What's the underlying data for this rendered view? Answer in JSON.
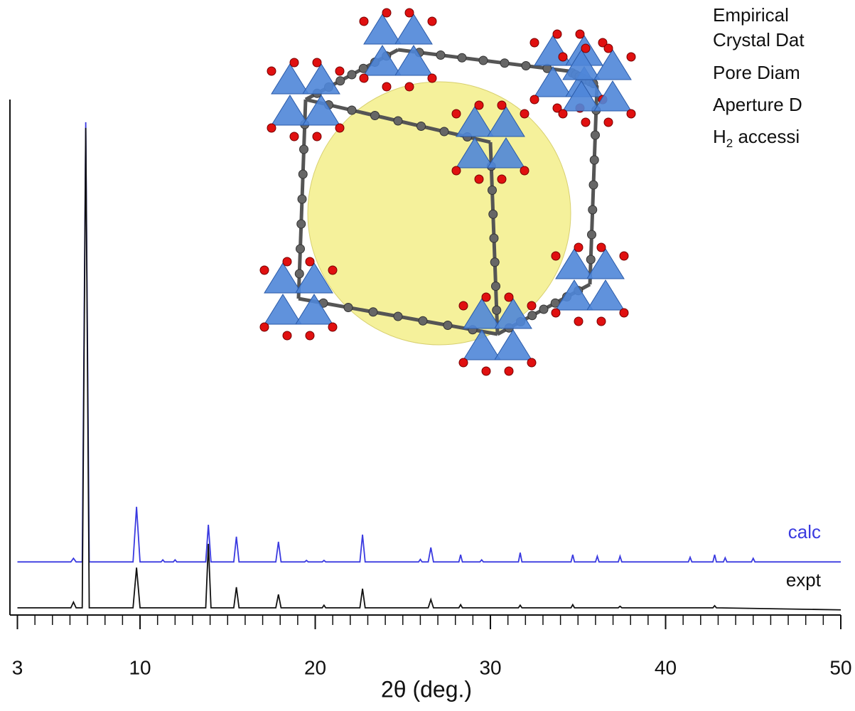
{
  "chart_data": {
    "type": "line",
    "xlabel": "2θ (deg.)",
    "xlim": [
      3,
      50
    ],
    "xticks": [
      3,
      10,
      20,
      30,
      40,
      50
    ],
    "xminorticks": [
      4,
      5,
      6,
      7,
      8,
      9,
      11,
      12,
      13,
      14,
      15,
      16,
      17,
      18,
      19,
      21,
      22,
      23,
      24,
      25,
      26,
      27,
      28,
      29,
      31,
      32,
      33,
      34,
      35,
      36,
      37,
      38,
      39,
      41,
      42,
      43,
      44,
      45,
      46,
      47,
      48,
      49
    ],
    "ylim": [
      0,
      100
    ],
    "series": [
      {
        "name": "calc",
        "color": "#3a3ae0",
        "x": [
          3,
          6.05,
          6.2,
          6.35,
          6.7,
          6.9,
          7.1,
          9.6,
          9.8,
          10.0,
          11.2,
          11.3,
          11.4,
          11.9,
          12,
          12.1,
          13.75,
          13.9,
          14.05,
          15.35,
          15.5,
          15.65,
          17.75,
          17.9,
          18.05,
          19.4,
          19.5,
          19.6,
          20.4,
          20.5,
          20.6,
          22.55,
          22.7,
          22.85,
          25.9,
          26,
          26.1,
          26.45,
          26.6,
          26.75,
          28.2,
          28.3,
          28.4,
          29.4,
          29.5,
          29.6,
          31.6,
          31.7,
          31.8,
          34.6,
          34.7,
          34.8,
          36,
          36.1,
          36.2,
          37.3,
          37.4,
          37.5,
          41.3,
          41.4,
          41.5,
          42.7,
          42.8,
          42.9,
          43.3,
          43.4,
          43.5,
          44.9,
          45,
          45.1,
          50
        ],
        "values": [
          10.3,
          10.3,
          11.0,
          10.3,
          10.3,
          95.6,
          10.3,
          10.3,
          21,
          10.3,
          10.3,
          10.7,
          10.3,
          10.3,
          10.7,
          10.3,
          10.3,
          17.5,
          10.3,
          10.3,
          15.2,
          10.3,
          10.3,
          14.2,
          10.3,
          10.3,
          10.6,
          10.3,
          10.3,
          10.6,
          10.3,
          10.3,
          15.6,
          10.3,
          10.3,
          10.8,
          10.3,
          10.3,
          13.1,
          10.3,
          10.3,
          11.7,
          10.3,
          10.3,
          10.7,
          10.3,
          10.3,
          12.1,
          10.3,
          10.3,
          11.7,
          10.3,
          10.3,
          11.4,
          10.3,
          10.3,
          11.4,
          10.3,
          10.3,
          11.2,
          10.3,
          10.3,
          11.7,
          10.3,
          10.3,
          11.1,
          10.3,
          10.3,
          11.0,
          10.3,
          10.3
        ]
      },
      {
        "name": "expt",
        "color": "#111111",
        "x": [
          3,
          6.05,
          6.2,
          6.35,
          6.7,
          6.9,
          7.1,
          9.6,
          9.8,
          10.0,
          13.75,
          13.9,
          14.05,
          15.35,
          15.5,
          15.65,
          17.75,
          17.9,
          18.05,
          20.4,
          20.5,
          20.6,
          22.55,
          22.7,
          22.85,
          26.45,
          26.6,
          26.75,
          28.2,
          28.3,
          28.4,
          31.6,
          31.7,
          31.8,
          34.6,
          34.7,
          34.8,
          37.3,
          37.4,
          37.5,
          42.7,
          42.8,
          42.9,
          50
        ],
        "values": [
          1.4,
          1.4,
          2.5,
          1.4,
          1.4,
          94.5,
          1.4,
          1.4,
          9.2,
          1.4,
          1.4,
          13.8,
          1.4,
          1.4,
          5.4,
          1.4,
          1.4,
          4.0,
          1.4,
          1.4,
          1.9,
          1.4,
          1.4,
          5.1,
          1.4,
          1.4,
          3.0,
          1.4,
          1.4,
          2.0,
          1.4,
          1.4,
          1.9,
          1.4,
          1.4,
          2.0,
          1.4,
          1.4,
          1.7,
          1.4,
          1.4,
          1.8,
          1.4,
          1.0
        ]
      }
    ]
  },
  "text_panel": {
    "lines": [
      "Empirical",
      "Crystal Dat",
      "Pore Diam",
      "Aperture D"
    ],
    "h2_line": {
      "base": "H",
      "sub": "2",
      "rest": " accessi"
    }
  }
}
